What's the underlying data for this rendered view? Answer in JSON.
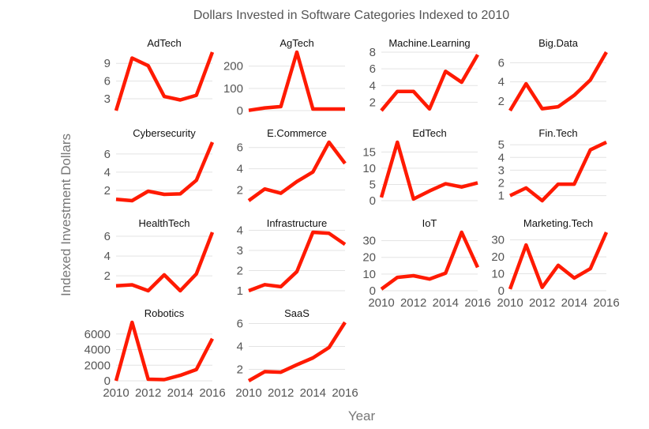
{
  "chart_data": {
    "type": "line",
    "title": "Dollars Invested in Software Categories Indexed to 2010",
    "xlabel": "Year",
    "ylabel": "Indexed Investment Dollars",
    "line_color": "#ff1a00",
    "grid": true,
    "x": [
      2010,
      2011,
      2012,
      2013,
      2014,
      2015,
      2016
    ],
    "xlim": [
      2010,
      2016
    ],
    "xticks": [
      "2010",
      "2012",
      "2014",
      "2016"
    ],
    "panels": [
      {
        "name": "AdTech",
        "values": [
          1,
          9.9,
          8.6,
          3.4,
          2.8,
          3.6,
          10.9
        ],
        "ylim": [
          1,
          10.9
        ],
        "yticks": [
          "3",
          "6",
          "9"
        ]
      },
      {
        "name": "AgTech",
        "values": [
          1,
          12,
          18,
          263,
          7,
          7,
          7
        ],
        "ylim": [
          0,
          263
        ],
        "yticks": [
          "0",
          "100",
          "200"
        ]
      },
      {
        "name": "Machine.Learning",
        "values": [
          1,
          3.3,
          3.3,
          1.2,
          5.7,
          4.4,
          7.7
        ],
        "ylim": [
          1,
          8
        ],
        "yticks": [
          "2",
          "4",
          "6",
          "8"
        ]
      },
      {
        "name": "Big.Data",
        "values": [
          1,
          3.8,
          1.2,
          1.4,
          2.6,
          4.2,
          7.1
        ],
        "ylim": [
          1,
          7.1
        ],
        "yticks": [
          "2",
          "4",
          "6"
        ]
      },
      {
        "name": "Cybersecurity",
        "values": [
          1,
          0.85,
          1.9,
          1.55,
          1.6,
          3.1,
          7.3
        ],
        "ylim": [
          0.85,
          7.3
        ],
        "yticks": [
          "2",
          "4",
          "6"
        ]
      },
      {
        "name": "E.Commerce",
        "values": [
          1,
          2.1,
          1.7,
          2.8,
          3.7,
          6.5,
          4.5
        ],
        "ylim": [
          1,
          6.5
        ],
        "yticks": [
          "2",
          "4",
          "6"
        ]
      },
      {
        "name": "EdTech",
        "values": [
          1,
          18,
          0.5,
          3,
          5.2,
          4.2,
          5.5
        ],
        "ylim": [
          0,
          18
        ],
        "yticks": [
          "0",
          "5",
          "10",
          "15"
        ]
      },
      {
        "name": "Fin.Tech",
        "values": [
          1,
          1.6,
          0.6,
          1.9,
          1.9,
          4.6,
          5.2
        ],
        "ylim": [
          0.6,
          5.2
        ],
        "yticks": [
          "1",
          "2",
          "3",
          "4",
          "5"
        ]
      },
      {
        "name": "HealthTech",
        "values": [
          1,
          1.1,
          0.5,
          2.1,
          0.5,
          2.2,
          6.4
        ],
        "ylim": [
          0.5,
          6.4
        ],
        "yticks": [
          "2",
          "4",
          "6"
        ]
      },
      {
        "name": "Infrastructure",
        "values": [
          1,
          1.3,
          1.2,
          1.95,
          3.9,
          3.85,
          3.3
        ],
        "ylim": [
          1,
          3.9
        ],
        "yticks": [
          "1",
          "2",
          "3",
          "4"
        ]
      },
      {
        "name": "IoT",
        "values": [
          1,
          8,
          9,
          7,
          10.5,
          35,
          14
        ],
        "ylim": [
          0,
          35
        ],
        "yticks": [
          "0",
          "10",
          "20",
          "30"
        ]
      },
      {
        "name": "Marketing.Tech",
        "values": [
          1,
          27,
          2,
          15,
          7.5,
          13,
          34.5
        ],
        "ylim": [
          0,
          34.5
        ],
        "yticks": [
          "0",
          "10",
          "20",
          "30"
        ]
      },
      {
        "name": "Robotics",
        "values": [
          1,
          7500,
          200,
          150,
          700,
          1450,
          5400
        ],
        "ylim": [
          0,
          7500
        ],
        "yticks": [
          "0",
          "2000",
          "4000",
          "6000"
        ]
      },
      {
        "name": "SaaS",
        "values": [
          1,
          1.8,
          1.75,
          2.4,
          3,
          3.9,
          6.1
        ],
        "ylim": [
          1,
          6.1
        ],
        "yticks": [
          "2",
          "4",
          "6"
        ]
      }
    ]
  }
}
